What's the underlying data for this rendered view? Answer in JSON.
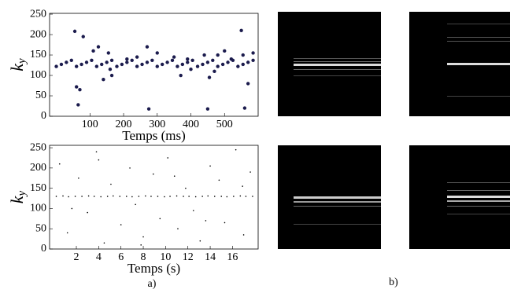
{
  "chart_data": [
    {
      "type": "scatter",
      "ylabel": "k_y",
      "xlabel": "Temps (ms)",
      "color": "#1b1b4d",
      "xlim": [
        -20,
        600
      ],
      "ylim": [
        0,
        252
      ],
      "xticks": [
        100,
        200,
        300,
        400,
        500
      ],
      "yticks": [
        0,
        50,
        100,
        150,
        200,
        250
      ],
      "series": [
        {
          "x": [
            0,
            15,
            30,
            45,
            60,
            75,
            90,
            105,
            120,
            135,
            150,
            165,
            180,
            195,
            210,
            225,
            240,
            255,
            270,
            285,
            300,
            315,
            330,
            345,
            360,
            375,
            390,
            405,
            420,
            435,
            450,
            465,
            480,
            495,
            510,
            525,
            540,
            555,
            570,
            585,
            55,
            60,
            65,
            70,
            80,
            110,
            125,
            140,
            155,
            160,
            165,
            210,
            240,
            270,
            275,
            300,
            350,
            370,
            390,
            400,
            440,
            450,
            455,
            470,
            480,
            500,
            520,
            550,
            555,
            560,
            570,
            585
          ],
          "values": [
            122,
            127,
            132,
            137,
            122,
            127,
            132,
            137,
            122,
            127,
            132,
            137,
            122,
            127,
            132,
            137,
            122,
            127,
            132,
            137,
            122,
            127,
            132,
            137,
            122,
            127,
            132,
            137,
            122,
            127,
            132,
            137,
            122,
            127,
            132,
            137,
            122,
            127,
            132,
            137,
            208,
            72,
            28,
            65,
            195,
            160,
            170,
            90,
            155,
            115,
            100,
            140,
            145,
            170,
            18,
            155,
            145,
            100,
            140,
            115,
            150,
            18,
            95,
            110,
            150,
            160,
            140,
            210,
            150,
            20,
            80,
            155
          ]
        }
      ]
    },
    {
      "type": "scatter",
      "ylabel": "k_y",
      "xlabel": "Temps (s)",
      "color": "#000000",
      "xlim": [
        -0.4,
        18.3
      ],
      "ylim": [
        0,
        256
      ],
      "xticks": [
        2,
        4,
        6,
        8,
        10,
        12,
        14,
        16
      ],
      "yticks": [
        0,
        50,
        100,
        150,
        200,
        250
      ],
      "series": [
        {
          "x": [
            0.2,
            0.8,
            1.3,
            1.9,
            2.5,
            3.1,
            3.6,
            4.2,
            4.8,
            5.3,
            5.9,
            6.5,
            7.0,
            7.6,
            8.2,
            8.7,
            9.3,
            9.9,
            10.4,
            11.0,
            11.6,
            12.1,
            12.7,
            13.3,
            13.8,
            14.4,
            15.0,
            15.5,
            16.1,
            16.7,
            17.2,
            17.8,
            0.5,
            1.2,
            2.2,
            3.0,
            3.8,
            4.5,
            5.1,
            6.0,
            6.8,
            7.3,
            8.0,
            8.9,
            9.5,
            10.2,
            11.1,
            11.8,
            12.5,
            13.1,
            14.0,
            14.8,
            15.3,
            16.3,
            17.0,
            17.6,
            1.6,
            4.0,
            7.8,
            10.8,
            13.6,
            16.9
          ],
          "values": [
            130,
            131,
            129,
            130,
            130,
            131,
            130,
            129,
            130,
            131,
            130,
            130,
            129,
            130,
            131,
            130,
            130,
            129,
            130,
            131,
            130,
            130,
            129,
            130,
            131,
            130,
            130,
            129,
            130,
            131,
            130,
            130,
            210,
            40,
            175,
            90,
            240,
            15,
            160,
            60,
            200,
            110,
            30,
            185,
            75,
            225,
            50,
            150,
            95,
            20,
            205,
            170,
            65,
            245,
            35,
            190,
            100,
            220,
            10,
            180,
            70,
            155
          ]
        }
      ]
    }
  ],
  "captions": [
    "a)",
    "b)"
  ]
}
